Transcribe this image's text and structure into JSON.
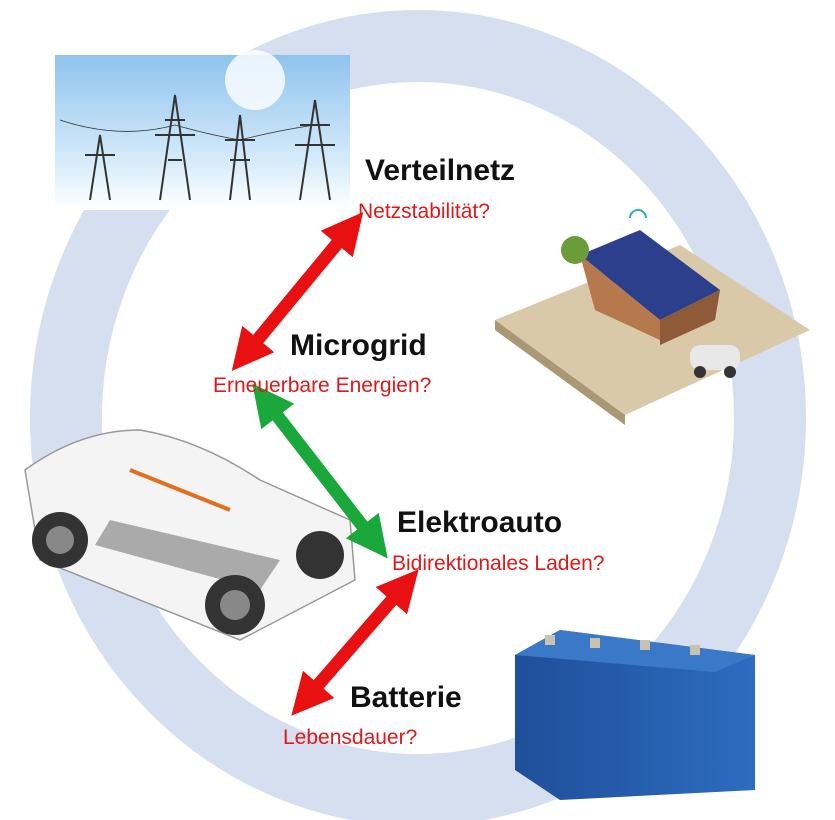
{
  "nodes": [
    {
      "label": "Verteilnetz",
      "question": "Netzstabilität?"
    },
    {
      "label": "Microgrid",
      "question": "Erneuerbare Energien?"
    },
    {
      "label": "Elektroauto",
      "question": "Bidirektionales Laden?"
    },
    {
      "label": "Batterie",
      "question": "Lebensdauer?"
    }
  ]
}
